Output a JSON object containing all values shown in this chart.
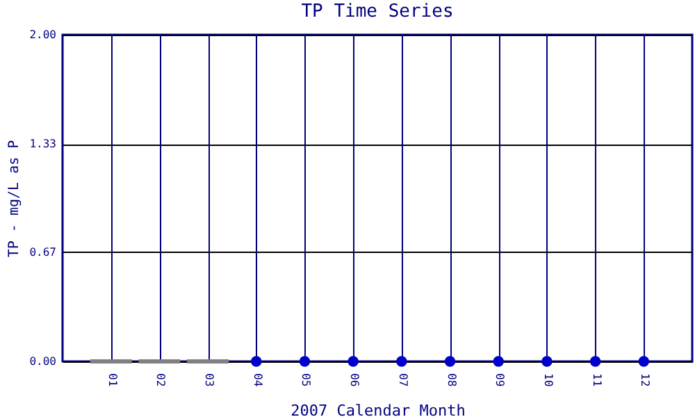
{
  "chart_data": {
    "type": "scatter",
    "title": "TP Time Series",
    "xlabel": "2007 Calendar Month",
    "ylabel": "TP - mg/L as P",
    "categories": [
      "01",
      "02",
      "03",
      "04",
      "05",
      "06",
      "07",
      "08",
      "09",
      "10",
      "11",
      "12"
    ],
    "series": [
      {
        "color": "#0000cc",
        "values": [
          null,
          null,
          null,
          0,
          0,
          0,
          0,
          0,
          0,
          0,
          0,
          0
        ]
      },
      {
        "type": "bar",
        "color": "#808080",
        "values": [
          0,
          0,
          0,
          null,
          null,
          null,
          null,
          null,
          null,
          null,
          null,
          null
        ]
      }
    ],
    "ylim": [
      0,
      2
    ],
    "yticks": [
      {
        "value": 0,
        "label": "0.00"
      },
      {
        "value": 0.67,
        "label": "0.67"
      },
      {
        "value": 1.33,
        "label": "1.33"
      },
      {
        "value": 2,
        "label": "2.00"
      }
    ],
    "grid": true,
    "marker": "circle"
  }
}
